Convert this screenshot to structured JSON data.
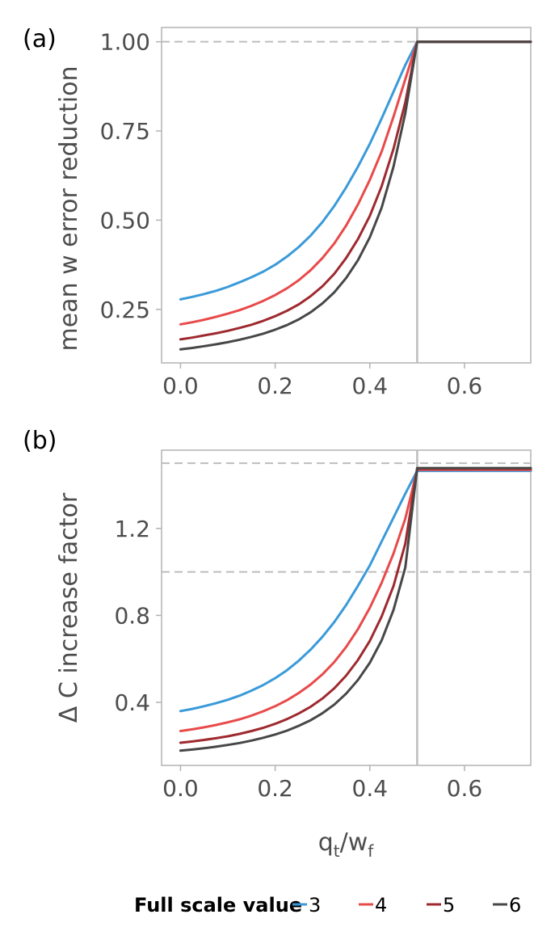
{
  "chart_data": [
    {
      "panel": "(a)",
      "type": "line",
      "ylabel": "mean w error reduction",
      "xlabel": "",
      "xlim": [
        -0.04,
        0.74
      ],
      "ylim": [
        0.1,
        1.04
      ],
      "xticks": [
        0.0,
        0.2,
        0.4,
        0.6
      ],
      "xtick_labels": [
        "0.0",
        "0.2",
        "0.4",
        "0.6"
      ],
      "yticks": [
        0.25,
        0.5,
        0.75,
        1.0
      ],
      "ytick_labels": [
        "0.25",
        "0.50",
        "0.75",
        "1.00"
      ],
      "hlines": [
        1.0
      ],
      "vline": 0.5,
      "series": [
        {
          "name": "3",
          "color": "#3a9ad9",
          "x": [
            0.0,
            0.025,
            0.05,
            0.075,
            0.1,
            0.125,
            0.15,
            0.175,
            0.2,
            0.225,
            0.25,
            0.275,
            0.3,
            0.325,
            0.35,
            0.375,
            0.4,
            0.425,
            0.45,
            0.475,
            0.5,
            0.55,
            0.6,
            0.65,
            0.7,
            0.74
          ],
          "y": [
            0.278,
            0.285,
            0.293,
            0.302,
            0.313,
            0.326,
            0.34,
            0.356,
            0.375,
            0.398,
            0.425,
            0.457,
            0.495,
            0.54,
            0.592,
            0.65,
            0.714,
            0.785,
            0.86,
            0.935,
            1.0,
            1.0,
            1.0,
            1.0,
            1.0,
            1.0
          ]
        },
        {
          "name": "4",
          "color": "#e84a4a",
          "x": [
            0.0,
            0.025,
            0.05,
            0.075,
            0.1,
            0.125,
            0.15,
            0.175,
            0.2,
            0.225,
            0.25,
            0.275,
            0.3,
            0.325,
            0.35,
            0.375,
            0.4,
            0.425,
            0.45,
            0.475,
            0.5,
            0.55,
            0.6,
            0.65,
            0.7,
            0.74
          ],
          "y": [
            0.208,
            0.214,
            0.221,
            0.229,
            0.238,
            0.248,
            0.26,
            0.274,
            0.29,
            0.309,
            0.332,
            0.36,
            0.394,
            0.435,
            0.485,
            0.544,
            0.613,
            0.692,
            0.79,
            0.895,
            1.0,
            1.0,
            1.0,
            1.0,
            1.0,
            1.0
          ]
        },
        {
          "name": "5",
          "color": "#9e2a2f",
          "x": [
            0.0,
            0.025,
            0.05,
            0.075,
            0.1,
            0.125,
            0.15,
            0.175,
            0.2,
            0.225,
            0.25,
            0.275,
            0.3,
            0.325,
            0.35,
            0.375,
            0.4,
            0.425,
            0.45,
            0.475,
            0.5,
            0.55,
            0.6,
            0.65,
            0.7,
            0.74
          ],
          "y": [
            0.166,
            0.171,
            0.177,
            0.183,
            0.19,
            0.198,
            0.207,
            0.218,
            0.231,
            0.246,
            0.264,
            0.287,
            0.315,
            0.35,
            0.394,
            0.447,
            0.512,
            0.595,
            0.7,
            0.83,
            1.0,
            1.0,
            1.0,
            1.0,
            1.0,
            1.0
          ]
        },
        {
          "name": "6",
          "color": "#474747",
          "x": [
            0.0,
            0.025,
            0.05,
            0.075,
            0.1,
            0.125,
            0.15,
            0.175,
            0.2,
            0.225,
            0.25,
            0.275,
            0.3,
            0.325,
            0.35,
            0.375,
            0.4,
            0.425,
            0.45,
            0.475,
            0.5,
            0.55,
            0.6,
            0.65,
            0.7,
            0.74
          ],
          "y": [
            0.138,
            0.142,
            0.147,
            0.152,
            0.158,
            0.165,
            0.173,
            0.182,
            0.193,
            0.206,
            0.222,
            0.242,
            0.267,
            0.298,
            0.338,
            0.388,
            0.452,
            0.535,
            0.65,
            0.8,
            1.0,
            1.0,
            1.0,
            1.0,
            1.0,
            1.0
          ]
        }
      ]
    },
    {
      "panel": "(b)",
      "type": "line",
      "ylabel": "Δ C increase factor",
      "xlabel": "qt/wf",
      "xlim": [
        -0.04,
        0.74
      ],
      "ylim": [
        0.11,
        1.56
      ],
      "xticks": [
        0.0,
        0.2,
        0.4,
        0.6
      ],
      "xtick_labels": [
        "0.0",
        "0.2",
        "0.4",
        "0.6"
      ],
      "yticks": [
        0.4,
        0.8,
        1.2
      ],
      "ytick_labels": [
        "0.4",
        "0.8",
        "1.2"
      ],
      "hlines": [
        1.0,
        1.5
      ],
      "vline": 0.5,
      "series": [
        {
          "name": "3",
          "color": "#3a9ad9",
          "x": [
            0.0,
            0.025,
            0.05,
            0.075,
            0.1,
            0.125,
            0.15,
            0.175,
            0.2,
            0.225,
            0.25,
            0.275,
            0.3,
            0.325,
            0.35,
            0.375,
            0.4,
            0.425,
            0.45,
            0.475,
            0.5,
            0.55,
            0.6,
            0.65,
            0.7,
            0.74
          ],
          "y": [
            0.36,
            0.37,
            0.382,
            0.396,
            0.412,
            0.431,
            0.454,
            0.48,
            0.511,
            0.548,
            0.592,
            0.643,
            0.702,
            0.77,
            0.848,
            0.936,
            1.03,
            1.14,
            1.25,
            1.36,
            1.465,
            1.465,
            1.465,
            1.465,
            1.465,
            1.465
          ]
        },
        {
          "name": "4",
          "color": "#e84a4a",
          "x": [
            0.0,
            0.025,
            0.05,
            0.075,
            0.1,
            0.125,
            0.15,
            0.175,
            0.2,
            0.225,
            0.25,
            0.275,
            0.3,
            0.325,
            0.35,
            0.375,
            0.4,
            0.425,
            0.45,
            0.475,
            0.5,
            0.55,
            0.6,
            0.65,
            0.7,
            0.74
          ],
          "y": [
            0.268,
            0.276,
            0.285,
            0.296,
            0.308,
            0.322,
            0.339,
            0.359,
            0.382,
            0.41,
            0.443,
            0.482,
            0.529,
            0.586,
            0.655,
            0.737,
            0.835,
            0.95,
            1.085,
            1.245,
            1.47,
            1.47,
            1.47,
            1.47,
            1.47,
            1.47
          ]
        },
        {
          "name": "5",
          "color": "#9e2a2f",
          "x": [
            0.0,
            0.025,
            0.05,
            0.075,
            0.1,
            0.125,
            0.15,
            0.175,
            0.2,
            0.225,
            0.25,
            0.275,
            0.3,
            0.325,
            0.35,
            0.375,
            0.4,
            0.425,
            0.45,
            0.475,
            0.5,
            0.55,
            0.6,
            0.65,
            0.7,
            0.74
          ],
          "y": [
            0.214,
            0.22,
            0.227,
            0.235,
            0.244,
            0.255,
            0.268,
            0.283,
            0.301,
            0.323,
            0.349,
            0.38,
            0.418,
            0.465,
            0.523,
            0.595,
            0.683,
            0.795,
            0.935,
            1.13,
            1.475,
            1.475,
            1.475,
            1.475,
            1.475,
            1.475
          ]
        },
        {
          "name": "6",
          "color": "#474747",
          "x": [
            0.0,
            0.025,
            0.05,
            0.075,
            0.1,
            0.125,
            0.15,
            0.175,
            0.2,
            0.225,
            0.25,
            0.275,
            0.3,
            0.325,
            0.35,
            0.375,
            0.4,
            0.425,
            0.45,
            0.475,
            0.5,
            0.55,
            0.6,
            0.65,
            0.7,
            0.74
          ],
          "y": [
            0.178,
            0.183,
            0.189,
            0.196,
            0.204,
            0.213,
            0.224,
            0.237,
            0.252,
            0.27,
            0.292,
            0.318,
            0.35,
            0.39,
            0.44,
            0.503,
            0.582,
            0.685,
            0.825,
            1.02,
            1.478,
            1.478,
            1.478,
            1.478,
            1.478,
            1.478
          ]
        }
      ]
    }
  ],
  "legend": {
    "title": "Full scale value",
    "entries": [
      "3",
      "4",
      "5",
      "6"
    ]
  }
}
